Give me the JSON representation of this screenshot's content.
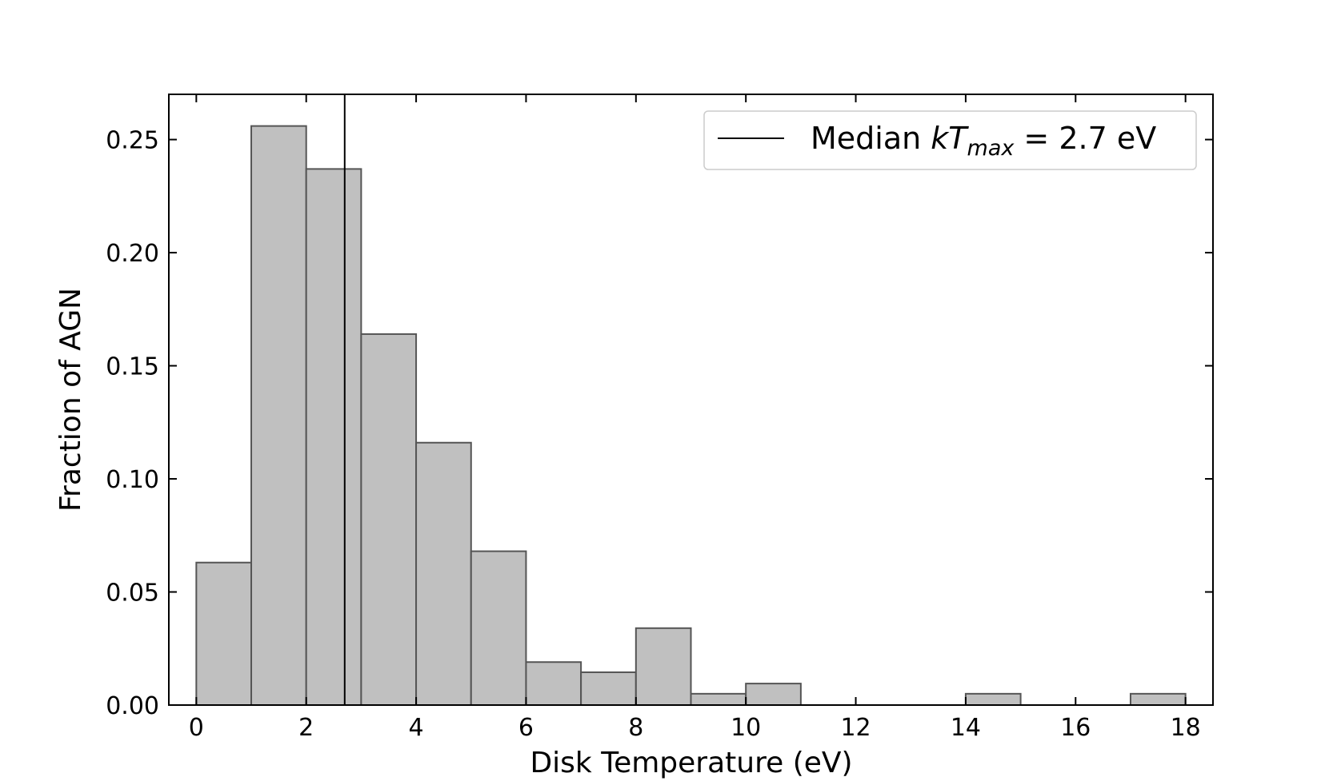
{
  "chart_data": {
    "type": "histogram",
    "xlabel": "Disk Temperature (eV)",
    "ylabel": "Fraction of AGN",
    "bins": [
      0,
      1,
      2,
      3,
      4,
      5,
      6,
      7,
      8,
      9,
      10,
      11,
      12,
      13,
      14,
      15,
      16,
      17,
      18
    ],
    "values": [
      0.063,
      0.256,
      0.237,
      0.164,
      0.116,
      0.068,
      0.019,
      0.0145,
      0.034,
      0.005,
      0.0095,
      0,
      0,
      0,
      0.005,
      0,
      0,
      0.005
    ],
    "color": "#c0c0c0",
    "edgecolor": "#555555",
    "xlim": [
      -0.5,
      18.5
    ],
    "xticks": [
      0,
      2,
      4,
      6,
      8,
      10,
      12,
      14,
      16,
      18
    ],
    "ylim": [
      0,
      0.27
    ],
    "yticks": [
      {
        "value": 0,
        "label": "0.00"
      },
      {
        "value": 0.05,
        "label": "0.05"
      },
      {
        "value": 0.1,
        "label": "0.10"
      },
      {
        "value": 0.15,
        "label": "0.15"
      },
      {
        "value": 0.2,
        "label": "0.20"
      },
      {
        "value": 0.25,
        "label": "0.25"
      }
    ],
    "median_line": {
      "x": 2.7,
      "color": "#000000",
      "label_parts": [
        "Median ",
        "kT",
        "max",
        " = 2.7 eV"
      ]
    },
    "legend": "upper right"
  }
}
